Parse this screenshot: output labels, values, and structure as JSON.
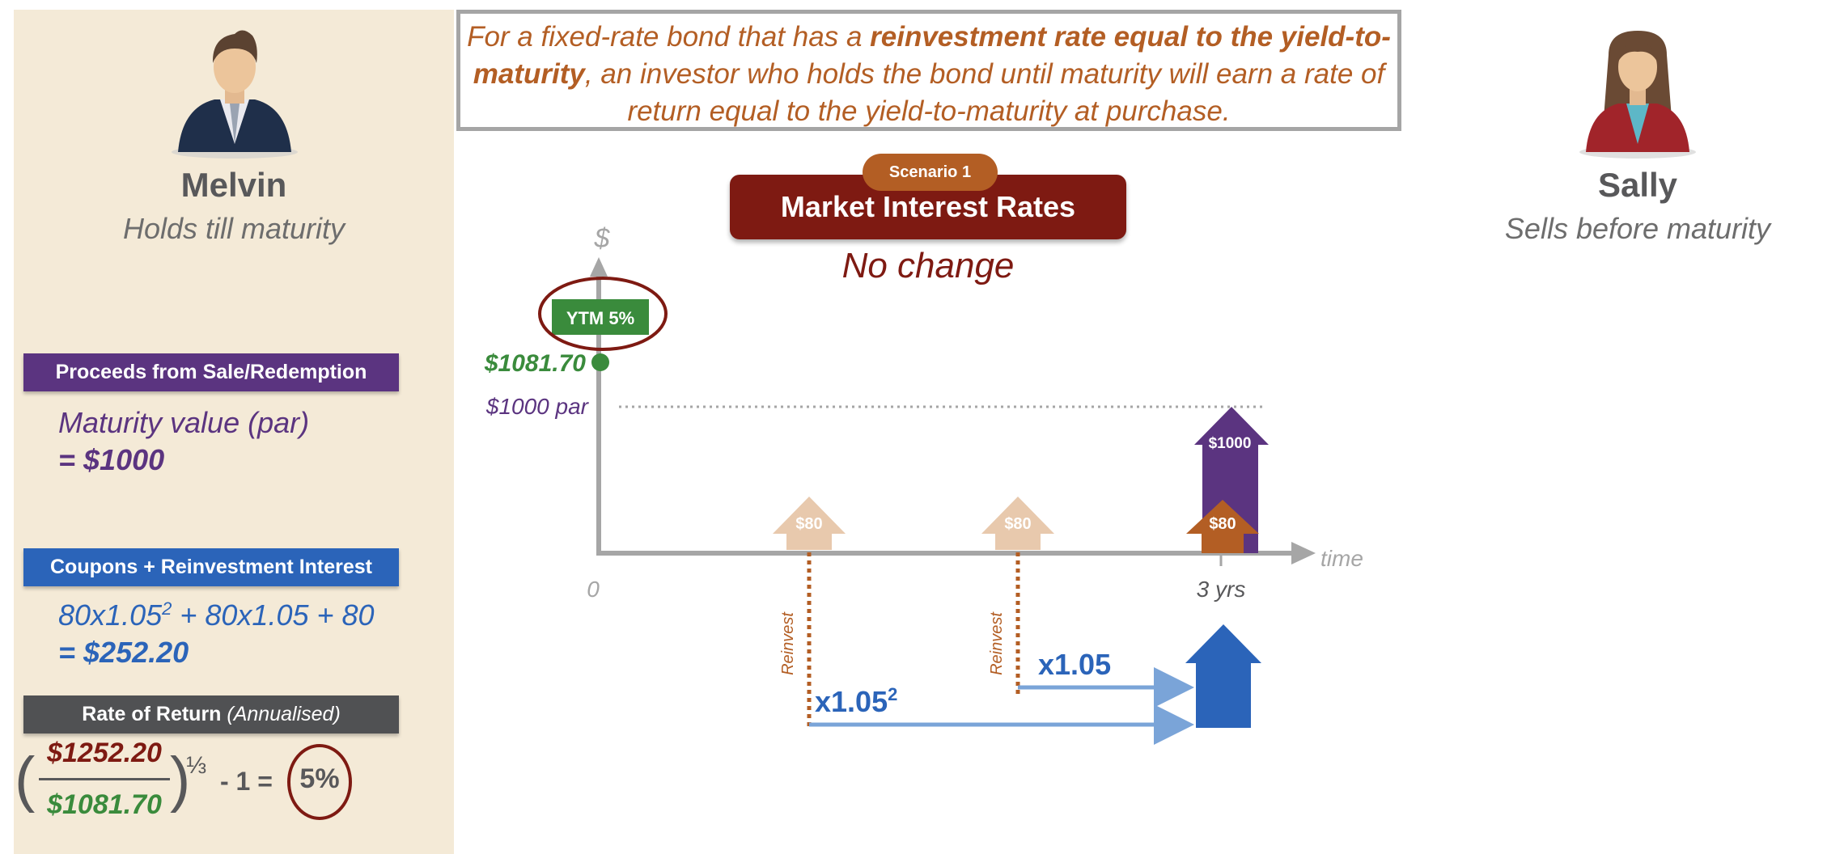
{
  "statement": {
    "part1": "For a fixed-rate bond that has a ",
    "bold1": "reinvestment rate equal to the yield-to-maturity",
    "part2": ", an investor who holds the bond until maturity will earn a rate of return equal to the yield-to-maturity at purchase."
  },
  "melvin": {
    "name": "Melvin",
    "role": "Holds till maturity"
  },
  "sally": {
    "name": "Sally",
    "role": "Sells before maturity"
  },
  "proceeds": {
    "label": "Proceeds from Sale/Redemption",
    "line1": "Maturity value (par)",
    "line2": "= $1000"
  },
  "coupons": {
    "label": "Coupons + Reinvestment Interest",
    "formula_a": "80x1.05",
    "formula_sup": "2",
    "formula_b": " + 80x1.05 + 80",
    "result": "= $252.20"
  },
  "rate": {
    "label": "Rate of Return",
    "label_note": "(Annualised)",
    "numerator": "$1252.20",
    "denominator": "$1081.70",
    "exponent": "⅓",
    "minus": "- 1 =",
    "answer": "5%"
  },
  "scenario": {
    "pill": "Scenario 1",
    "title": "Market Interest Rates",
    "subtitle": "No change"
  },
  "diagram": {
    "y_axis_label": "$",
    "x_axis_label": "time",
    "origin": "0",
    "maturity_tick": "3 yrs",
    "ytm_badge": "YTM 5%",
    "price_label": "$1081.70",
    "par_label": "$1000 par",
    "coupon_label": "$80",
    "principal_label": "$1000",
    "reinvest_label": "Reinvest",
    "mult_one": "x1.05",
    "mult_two": "x1.05",
    "mult_two_sup": "2"
  },
  "colors": {
    "panel": "#f4ead7",
    "purple": "#5b3480",
    "blue": "#2b64b9",
    "orange": "#b35e24",
    "maroon": "#7e1a12",
    "green": "#3a8b3c",
    "gray": "#58585a"
  }
}
